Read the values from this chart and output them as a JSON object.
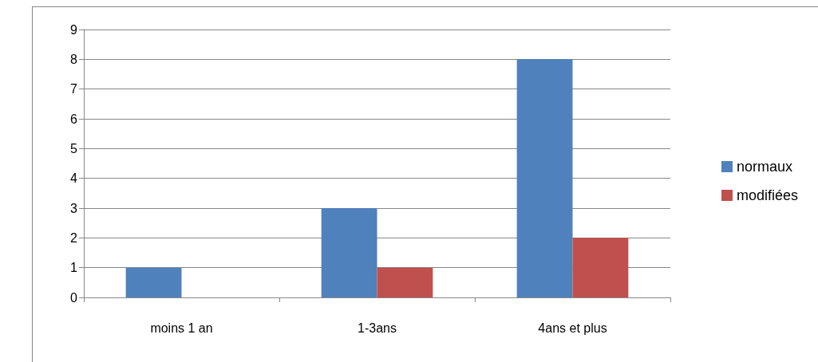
{
  "chart_data": {
    "type": "bar",
    "categories": [
      "moins 1 an",
      "1-3ans",
      "4ans et plus"
    ],
    "series": [
      {
        "name": "normaux",
        "color": "#4f81bd",
        "values": [
          1,
          3,
          8
        ]
      },
      {
        "name": "modifiées",
        "color": "#c0504d",
        "values": [
          0,
          1,
          2
        ]
      }
    ],
    "ylim": [
      0,
      9
    ],
    "yticks": [
      0,
      1,
      2,
      3,
      4,
      5,
      6,
      7,
      8,
      9
    ],
    "grid": "y",
    "legend": "right"
  }
}
